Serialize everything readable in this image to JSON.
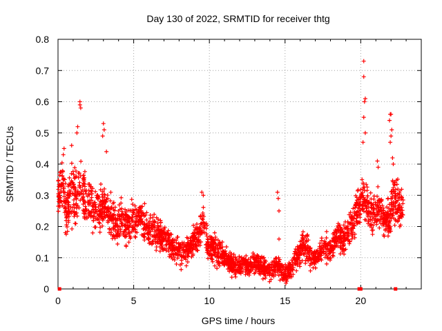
{
  "chart_data": {
    "type": "scatter",
    "title": "Day 130 of 2022, SRMTID for receiver thtg",
    "xlabel": "GPS time / hours",
    "ylabel": "SRMTID / TECUs",
    "xlim": [
      0,
      24
    ],
    "ylim": [
      0,
      0.8
    ],
    "xticks": [
      0,
      5,
      10,
      15,
      20
    ],
    "yticks": [
      0,
      0.1,
      0.2,
      0.3,
      0.4,
      0.5,
      0.6,
      0.7,
      0.8
    ],
    "xtick_labels": [
      "0",
      "5",
      "10",
      "15",
      "20"
    ],
    "ytick_labels": [
      "0",
      "0.1",
      "0.2",
      "0.3",
      "0.4",
      "0.5",
      "0.6",
      "0.7",
      "0.8"
    ],
    "grid": true,
    "marker": "+",
    "color": "#ff0000",
    "series": [
      {
        "name": "SRMTID",
        "trend": {
          "x": [
            0.0,
            0.3,
            0.6,
            0.9,
            1.2,
            1.5,
            1.8,
            2.1,
            2.4,
            2.7,
            3.0,
            3.3,
            3.6,
            3.9,
            4.2,
            4.5,
            4.8,
            5.1,
            5.4,
            5.7,
            6.0,
            6.3,
            6.6,
            6.9,
            7.2,
            7.5,
            7.8,
            8.1,
            8.4,
            8.7,
            9.0,
            9.3,
            9.6,
            9.9,
            10.2,
            10.5,
            10.8,
            11.1,
            11.4,
            11.7,
            12.0,
            12.3,
            12.6,
            12.9,
            13.2,
            13.5,
            13.8,
            14.1,
            14.4,
            14.7,
            15.0,
            15.3,
            15.6,
            15.9,
            16.2,
            16.5,
            16.8,
            17.1,
            17.4,
            17.7,
            18.0,
            18.3,
            18.6,
            18.9,
            19.2,
            19.5,
            19.8,
            20.1,
            20.4,
            20.7,
            21.0,
            21.3,
            21.6,
            21.9,
            22.2,
            22.5,
            22.8
          ],
          "mean": [
            0.3,
            0.34,
            0.23,
            0.31,
            0.28,
            0.33,
            0.29,
            0.27,
            0.26,
            0.25,
            0.27,
            0.24,
            0.22,
            0.21,
            0.23,
            0.2,
            0.22,
            0.21,
            0.24,
            0.2,
            0.19,
            0.18,
            0.17,
            0.17,
            0.16,
            0.14,
            0.13,
            0.12,
            0.12,
            0.14,
            0.16,
            0.17,
            0.22,
            0.14,
            0.13,
            0.12,
            0.11,
            0.1,
            0.08,
            0.07,
            0.07,
            0.08,
            0.07,
            0.08,
            0.08,
            0.07,
            0.06,
            0.06,
            0.08,
            0.06,
            0.05,
            0.06,
            0.09,
            0.11,
            0.14,
            0.13,
            0.1,
            0.1,
            0.12,
            0.14,
            0.13,
            0.15,
            0.17,
            0.16,
            0.19,
            0.22,
            0.25,
            0.29,
            0.27,
            0.24,
            0.25,
            0.26,
            0.23,
            0.22,
            0.3,
            0.26,
            0.25
          ],
          "spread": [
            0.07,
            0.08,
            0.07,
            0.09,
            0.09,
            0.09,
            0.08,
            0.07,
            0.07,
            0.07,
            0.07,
            0.06,
            0.06,
            0.06,
            0.06,
            0.06,
            0.06,
            0.05,
            0.05,
            0.05,
            0.05,
            0.05,
            0.05,
            0.05,
            0.04,
            0.04,
            0.04,
            0.04,
            0.04,
            0.04,
            0.05,
            0.05,
            0.06,
            0.04,
            0.04,
            0.04,
            0.04,
            0.03,
            0.03,
            0.03,
            0.03,
            0.03,
            0.03,
            0.03,
            0.03,
            0.03,
            0.03,
            0.03,
            0.03,
            0.03,
            0.03,
            0.03,
            0.03,
            0.04,
            0.04,
            0.04,
            0.03,
            0.03,
            0.04,
            0.04,
            0.04,
            0.04,
            0.05,
            0.05,
            0.05,
            0.05,
            0.06,
            0.06,
            0.06,
            0.06,
            0.06,
            0.06,
            0.06,
            0.06,
            0.08,
            0.06,
            0.05
          ]
        },
        "peaks": [
          {
            "x": 1.45,
            "y": 0.6
          },
          {
            "x": 1.45,
            "y": 0.59
          },
          {
            "x": 1.5,
            "y": 0.58
          },
          {
            "x": 1.3,
            "y": 0.52
          },
          {
            "x": 1.25,
            "y": 0.5
          },
          {
            "x": 0.9,
            "y": 0.46
          },
          {
            "x": 0.4,
            "y": 0.45
          },
          {
            "x": 0.35,
            "y": 0.43
          },
          {
            "x": 3.0,
            "y": 0.53
          },
          {
            "x": 3.05,
            "y": 0.51
          },
          {
            "x": 2.95,
            "y": 0.49
          },
          {
            "x": 3.2,
            "y": 0.44
          },
          {
            "x": 9.5,
            "y": 0.31
          },
          {
            "x": 9.6,
            "y": 0.3
          },
          {
            "x": 14.5,
            "y": 0.31
          },
          {
            "x": 14.55,
            "y": 0.29
          },
          {
            "x": 14.6,
            "y": 0.25
          },
          {
            "x": 14.6,
            "y": 0.16
          },
          {
            "x": 20.2,
            "y": 0.73
          },
          {
            "x": 20.2,
            "y": 0.68
          },
          {
            "x": 20.3,
            "y": 0.61
          },
          {
            "x": 20.25,
            "y": 0.6
          },
          {
            "x": 20.2,
            "y": 0.55
          },
          {
            "x": 20.3,
            "y": 0.5
          },
          {
            "x": 20.15,
            "y": 0.47
          },
          {
            "x": 21.95,
            "y": 0.56
          },
          {
            "x": 22.0,
            "y": 0.56
          },
          {
            "x": 21.9,
            "y": 0.54
          },
          {
            "x": 22.05,
            "y": 0.51
          },
          {
            "x": 22.0,
            "y": 0.49
          },
          {
            "x": 21.95,
            "y": 0.47
          },
          {
            "x": 22.1,
            "y": 0.42
          },
          {
            "x": 22.15,
            "y": 0.4
          },
          {
            "x": 21.1,
            "y": 0.41
          },
          {
            "x": 21.15,
            "y": 0.39
          }
        ],
        "zero_points": [
          {
            "x": 0.1,
            "y": 0.0
          },
          {
            "x": 19.9,
            "y": 0.0
          },
          {
            "x": 20.0,
            "y": 0.0
          },
          {
            "x": 22.3,
            "y": 0.0
          }
        ]
      }
    ]
  }
}
